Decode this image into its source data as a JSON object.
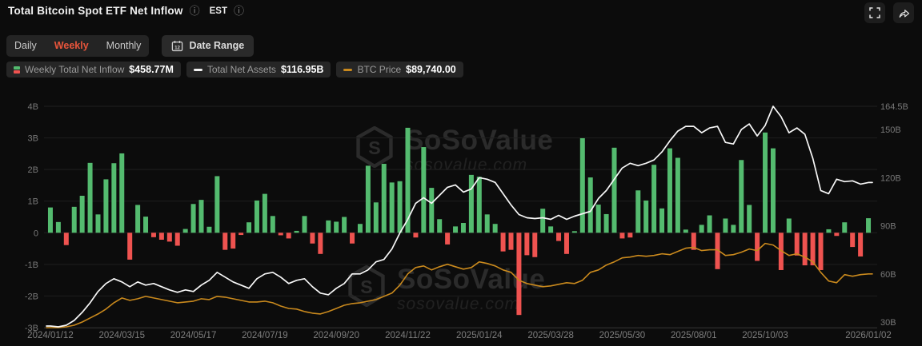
{
  "header": {
    "title": "Total Bitcoin Spot ETF Net Inflow",
    "timezone_label": "EST"
  },
  "toolbar": {
    "tabs": [
      {
        "label": "Daily",
        "active": false
      },
      {
        "label": "Weekly",
        "active": true
      },
      {
        "label": "Monthly",
        "active": false
      }
    ],
    "date_range_label": "Date Range"
  },
  "legend": [
    {
      "label": "Weekly Total Net Inflow",
      "value": "$458.77M",
      "icon": "bar-green-red-swatch"
    },
    {
      "label": "Total Net Assets",
      "value": "$116.95B",
      "icon": "white-dash-swatch"
    },
    {
      "label": "BTC Price",
      "value": "$89,740.00",
      "icon": "orange-dash-swatch"
    }
  ],
  "watermark": {
    "brand": "SoSoValue",
    "site": "sosovalue.com"
  },
  "colors": {
    "background": "#0c0c0c",
    "green": "#54bb6f",
    "red": "#ef5350",
    "assets_line": "#f7f7f7",
    "btc_line": "#c9891d",
    "accent": "#e8553b",
    "grid": "#1f1f1f",
    "axis_text": "#787878"
  },
  "chart_data": {
    "type": "bar",
    "subtype": "bars-with-two-overlay-lines",
    "title": "Total Bitcoin Spot ETF Net Inflow (Weekly)",
    "weeks": 104,
    "x_ticks": [
      {
        "label": "2024/01/12",
        "week": 0
      },
      {
        "label": "2024/03/15",
        "week": 9
      },
      {
        "label": "2024/05/17",
        "week": 18
      },
      {
        "label": "2024/07/19",
        "week": 27
      },
      {
        "label": "2024/09/20",
        "week": 36
      },
      {
        "label": "2024/11/22",
        "week": 45
      },
      {
        "label": "2025/01/24",
        "week": 54
      },
      {
        "label": "2025/03/28",
        "week": 63
      },
      {
        "label": "2025/05/30",
        "week": 72
      },
      {
        "label": "2025/08/01",
        "week": 81
      },
      {
        "label": "2025/10/03",
        "week": 90
      },
      {
        "label": "2026/01/02",
        "week": 103
      }
    ],
    "left_axis": {
      "unit": "USD billions (net inflow)",
      "tick_values": [
        4,
        3,
        2,
        1,
        0,
        -1,
        -2,
        -3
      ],
      "tick_labels": [
        "4B",
        "3B",
        "2B",
        "1B",
        "0",
        "-1B",
        "-2B",
        "-3B"
      ],
      "range": [
        -3,
        4
      ]
    },
    "right_axis": {
      "unit": "USD billions (total net assets)",
      "tick_values": [
        164.5,
        150,
        120,
        90,
        60,
        30
      ],
      "tick_labels": [
        "164.5B",
        "150B",
        "120B",
        "90B",
        "60B",
        "30B"
      ],
      "range": [
        26.5,
        164.5
      ]
    },
    "series": [
      {
        "name": "Weekly Total Net Inflow",
        "type": "bar",
        "axis": "left",
        "unit": "B USD",
        "values": [
          0.8,
          0.34,
          -0.39,
          0.82,
          1.17,
          2.21,
          0.58,
          1.69,
          2.2,
          2.51,
          -0.85,
          0.88,
          0.51,
          -0.14,
          -0.22,
          -0.28,
          -0.41,
          0.12,
          0.91,
          1.04,
          0.19,
          1.79,
          -0.54,
          -0.5,
          -0.07,
          0.33,
          1.02,
          1.23,
          0.53,
          -0.08,
          -0.18,
          0.06,
          0.53,
          -0.34,
          -0.67,
          0.39,
          0.35,
          0.5,
          -0.34,
          0.28,
          2.12,
          0.96,
          2.18,
          1.59,
          1.63,
          3.32,
          -0.15,
          2.71,
          1.42,
          0.43,
          -0.37,
          0.2,
          0.31,
          1.83,
          1.77,
          0.58,
          0.28,
          -0.59,
          -0.54,
          -2.6,
          -0.71,
          -0.77,
          0.76,
          0.2,
          -0.26,
          -0.67,
          0.05,
          2.99,
          1.75,
          0.89,
          0.59,
          2.69,
          -0.18,
          -0.15,
          1.34,
          1.02,
          2.15,
          0.77,
          2.67,
          2.37,
          0.1,
          -0.54,
          0.25,
          0.55,
          -1.15,
          0.45,
          0.25,
          2.3,
          0.88,
          -0.89,
          3.17,
          2.67,
          -1.18,
          0.45,
          -0.72,
          -1.03,
          -1.03,
          -1.18,
          0.11,
          -0.1,
          0.33,
          -0.45,
          -0.75,
          0.46
        ]
      },
      {
        "name": "Total Net Assets",
        "type": "line",
        "axis": "right",
        "unit": "B USD",
        "values": [
          27.5,
          27,
          28,
          31,
          36,
          42,
          49,
          54,
          57,
          55,
          52,
          55,
          53,
          54,
          52,
          50,
          48.5,
          50,
          49,
          53,
          56,
          61,
          58,
          55,
          53,
          51,
          57,
          60,
          61,
          58,
          54,
          56,
          57,
          52,
          48,
          47,
          51,
          54,
          60,
          60,
          62.5,
          67.5,
          69,
          75.5,
          85.5,
          94,
          104,
          107.5,
          104,
          109,
          114,
          115.5,
          111,
          113,
          120,
          119,
          117,
          110,
          103,
          97,
          95,
          94.5,
          95,
          94,
          96.5,
          94,
          96,
          97.5,
          99,
          107,
          112,
          119,
          126,
          129,
          127.5,
          129,
          131,
          136,
          143,
          149,
          152,
          152,
          148,
          151,
          152,
          142,
          141,
          150,
          153.5,
          146,
          152.5,
          164.5,
          158,
          148,
          151,
          147,
          132,
          112,
          110,
          119,
          117.5,
          118,
          116,
          116.95
        ]
      },
      {
        "name": "BTC Price",
        "type": "line",
        "axis": "hidden-price",
        "unit": "K USD",
        "values": [
          43.0,
          43.0,
          43.7,
          45.1,
          47.9,
          51.4,
          54.9,
          59.1,
          64.6,
          68.8,
          66.7,
          68.1,
          70.2,
          68.8,
          67.4,
          66.0,
          64.6,
          65.3,
          66.0,
          68.1,
          67.4,
          70.2,
          69.5,
          68.1,
          66.7,
          65.3,
          65.3,
          66.0,
          64.6,
          61.8,
          59.7,
          59.1,
          57.0,
          55.6,
          54.9,
          57.0,
          59.7,
          62.5,
          63.9,
          64.6,
          66.0,
          67.4,
          70.2,
          73.0,
          80.0,
          89.7,
          95.3,
          96.7,
          93.2,
          96.0,
          98.1,
          96.0,
          93.9,
          95.3,
          100.2,
          98.8,
          96.7,
          93.2,
          91.1,
          84.2,
          81.4,
          80.0,
          78.6,
          79.3,
          80.7,
          82.1,
          81.4,
          84.2,
          91.1,
          93.2,
          97.4,
          100.2,
          103.7,
          104.4,
          105.8,
          105.1,
          105.8,
          107.2,
          106.5,
          109.3,
          112.1,
          112.8,
          110.0,
          110.7,
          110.7,
          105.8,
          106.5,
          108.6,
          111.4,
          110.0,
          116.3,
          114.9,
          110.0,
          105.8,
          107.2,
          104.4,
          100.2,
          91.1,
          83.5,
          82.1,
          89.1,
          87.7,
          89.1,
          89.74
        ]
      }
    ],
    "legend_position": "top-left",
    "grid": true
  }
}
